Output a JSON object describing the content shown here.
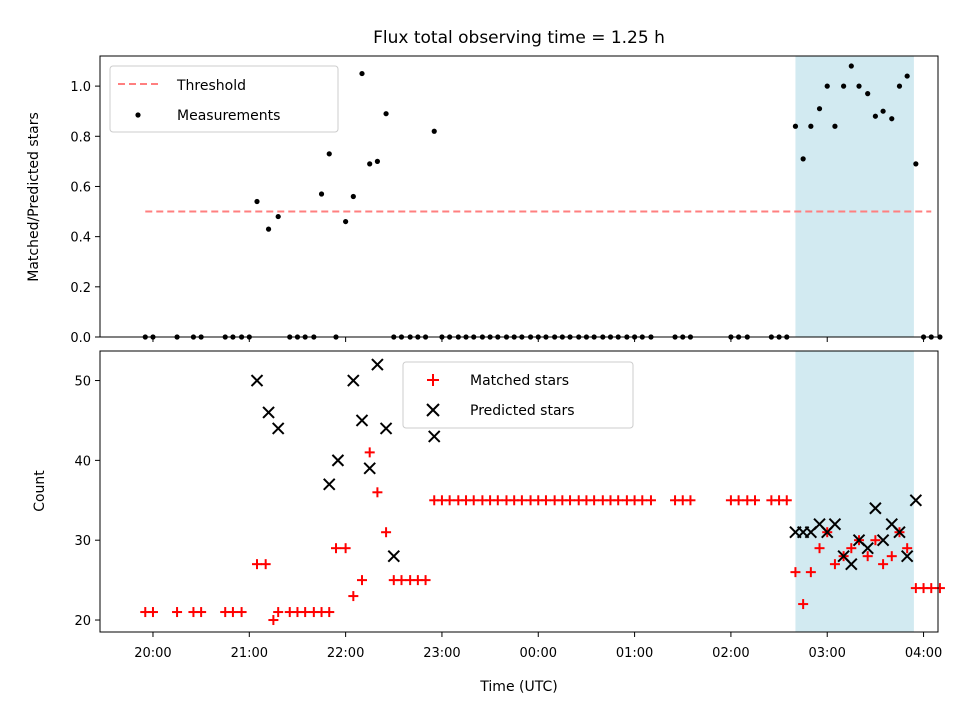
{
  "figure": {
    "title": "Flux total observing time = 1.25 h",
    "xlabel": "Time (UTC)",
    "x_tick_labels": [
      "20:00",
      "21:00",
      "22:00",
      "23:00",
      "00:00",
      "01:00",
      "02:00",
      "03:00",
      "04:00"
    ],
    "highlight_color": "#add8e6"
  },
  "chart_data": [
    {
      "type": "scatter",
      "ylabel": "Matched/Predicted stars",
      "ylim": [
        0,
        1.12
      ],
      "y_ticks": [
        0.0,
        0.2,
        0.4,
        0.6,
        0.8,
        1.0
      ],
      "y_tick_labels": [
        "0.0",
        "0.2",
        "0.4",
        "0.6",
        "0.8",
        "1.0"
      ],
      "xlim_hours": [
        19.45,
        28.15
      ],
      "highlight_span_hours": [
        26.67,
        27.9
      ],
      "legend": {
        "placement": "top-left",
        "entries": [
          "Threshold",
          "Measurements"
        ]
      },
      "series": [
        {
          "name": "Threshold",
          "kind": "line",
          "style": "dashed",
          "color": "#ff7f7f",
          "x": [
            19.92,
            28.08
          ],
          "y": [
            0.5,
            0.5
          ]
        },
        {
          "name": "Measurements",
          "kind": "scatter",
          "marker": "dot",
          "color": "#000000",
          "x": [
            19.92,
            20.0,
            20.25,
            20.42,
            20.5,
            20.75,
            20.83,
            20.92,
            21.0,
            21.08,
            21.2,
            21.3,
            21.42,
            21.5,
            21.58,
            21.67,
            21.75,
            21.83,
            21.9,
            22.0,
            22.08,
            22.17,
            22.25,
            22.33,
            22.42,
            22.5,
            22.58,
            22.67,
            22.75,
            22.83,
            22.92,
            23.0,
            23.08,
            23.17,
            23.25,
            23.33,
            23.42,
            23.5,
            23.58,
            23.67,
            23.75,
            23.83,
            23.92,
            24.0,
            24.08,
            24.17,
            24.25,
            24.33,
            24.42,
            24.5,
            24.58,
            24.67,
            24.75,
            24.83,
            24.92,
            25.0,
            25.08,
            25.17,
            25.42,
            25.5,
            25.58,
            26.0,
            26.08,
            26.17,
            26.42,
            26.5,
            26.58,
            26.67,
            26.75,
            26.83,
            26.92,
            27.0,
            27.08,
            27.17,
            27.25,
            27.33,
            27.42,
            27.5,
            27.58,
            27.67,
            27.75,
            27.83,
            27.92,
            28.0,
            28.08,
            28.17
          ],
          "y": [
            0,
            0,
            0,
            0,
            0,
            0,
            0,
            0,
            0,
            0.54,
            0.43,
            0.48,
            0,
            0,
            0,
            0,
            0.57,
            0.73,
            0,
            0.46,
            0.56,
            1.05,
            0.69,
            0.7,
            0.89,
            0,
            0,
            0,
            0,
            0,
            0.82,
            0,
            0,
            0,
            0,
            0,
            0,
            0,
            0,
            0,
            0,
            0,
            0,
            0,
            0,
            0,
            0,
            0,
            0,
            0,
            0,
            0,
            0,
            0,
            0,
            0,
            0,
            0,
            0,
            0,
            0,
            0,
            0,
            0,
            0,
            0,
            0,
            0.84,
            0.71,
            0.84,
            0.91,
            1.0,
            0.84,
            1.0,
            1.08,
            1.0,
            0.97,
            0.88,
            0.9,
            0.87,
            1.0,
            1.04,
            0.69,
            0,
            0,
            0
          ]
        }
      ]
    },
    {
      "type": "scatter",
      "ylabel": "Count",
      "ylim": [
        18.5,
        53.7
      ],
      "y_ticks": [
        20,
        30,
        40,
        50
      ],
      "y_tick_labels": [
        "20",
        "30",
        "40",
        "50"
      ],
      "xlim_hours": [
        19.45,
        28.15
      ],
      "highlight_span_hours": [
        26.67,
        27.9
      ],
      "legend": {
        "placement": "top-center",
        "entries": [
          "Matched stars",
          "Predicted stars"
        ]
      },
      "series": [
        {
          "name": "Matched stars",
          "kind": "scatter",
          "marker": "plus",
          "color": "#ff0000",
          "x": [
            19.92,
            20.0,
            20.25,
            20.42,
            20.5,
            20.75,
            20.83,
            20.92,
            21.08,
            21.17,
            21.25,
            21.3,
            21.42,
            21.5,
            21.58,
            21.67,
            21.75,
            21.83,
            21.9,
            22.0,
            22.08,
            22.17,
            22.25,
            22.33,
            22.42,
            22.5,
            22.58,
            22.67,
            22.75,
            22.83,
            22.92,
            23.0,
            23.08,
            23.17,
            23.25,
            23.33,
            23.42,
            23.5,
            23.58,
            23.67,
            23.75,
            23.83,
            23.92,
            24.0,
            24.08,
            24.17,
            24.25,
            24.33,
            24.42,
            24.5,
            24.58,
            24.67,
            24.75,
            24.83,
            24.92,
            25.0,
            25.08,
            25.17,
            25.42,
            25.5,
            25.58,
            26.0,
            26.08,
            26.17,
            26.25,
            26.42,
            26.5,
            26.58,
            26.67,
            26.75,
            26.83,
            26.92,
            27.0,
            27.08,
            27.17,
            27.25,
            27.33,
            27.42,
            27.5,
            27.58,
            27.67,
            27.75,
            27.83,
            27.92,
            28.0,
            28.08,
            28.17
          ],
          "y": [
            21,
            21,
            21,
            21,
            21,
            21,
            21,
            21,
            27,
            27,
            20,
            21,
            21,
            21,
            21,
            21,
            21,
            21,
            29,
            29,
            23,
            25,
            41,
            36,
            31,
            25,
            25,
            25,
            25,
            25,
            35,
            35,
            35,
            35,
            35,
            35,
            35,
            35,
            35,
            35,
            35,
            35,
            35,
            35,
            35,
            35,
            35,
            35,
            35,
            35,
            35,
            35,
            35,
            35,
            35,
            35,
            35,
            35,
            35,
            35,
            35,
            35,
            35,
            35,
            35,
            35,
            35,
            35,
            26,
            22,
            26,
            29,
            31,
            27,
            28,
            29,
            30,
            28,
            30,
            27,
            28,
            31,
            29,
            24,
            24,
            24,
            24
          ]
        },
        {
          "name": "Predicted stars",
          "kind": "scatter",
          "marker": "x",
          "color": "#000000",
          "x": [
            21.08,
            21.2,
            21.3,
            21.83,
            21.92,
            22.08,
            22.17,
            22.25,
            22.33,
            22.42,
            22.5,
            22.92,
            26.67,
            26.75,
            26.83,
            26.92,
            27.0,
            27.08,
            27.17,
            27.25,
            27.33,
            27.42,
            27.5,
            27.58,
            27.67,
            27.75,
            27.83,
            27.92
          ],
          "y": [
            50,
            46,
            44,
            37,
            40,
            50,
            45,
            39,
            52,
            44,
            28,
            43,
            31,
            31,
            31,
            32,
            31,
            32,
            28,
            27,
            30,
            29,
            34,
            30,
            32,
            31,
            28,
            35
          ]
        }
      ]
    }
  ]
}
